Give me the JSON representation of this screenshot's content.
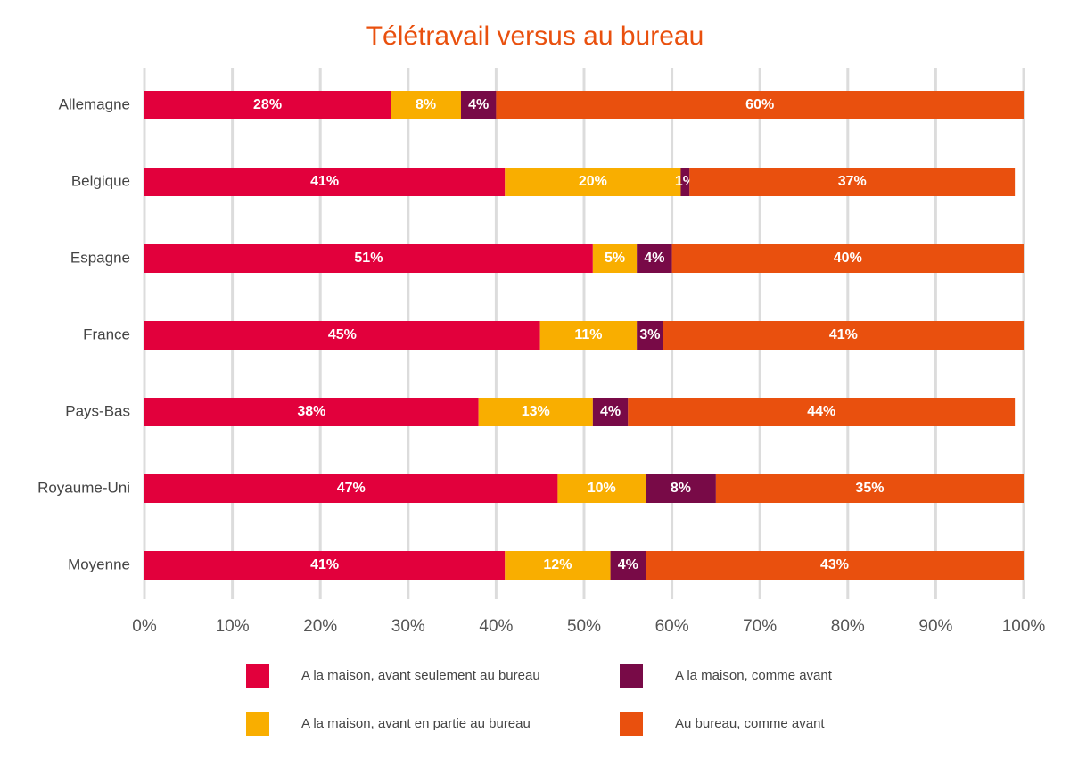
{
  "chart_data": {
    "type": "stacked-bar-horizontal",
    "title": "Télétravail versus au bureau",
    "categories": [
      "Allemagne",
      "Belgique",
      "Espagne",
      "France",
      "Pays-Bas",
      "Royaume-Uni",
      "Moyenne"
    ],
    "series": [
      {
        "name": "A la maison, avant seulement au bureau",
        "color": "#e2003c",
        "values": [
          28,
          41,
          51,
          45,
          38,
          47,
          41
        ],
        "value_labels": [
          "28%",
          "41%",
          "51%",
          "45%",
          "38%",
          "47%",
          "41%"
        ]
      },
      {
        "name": "A la maison, avant en partie au bureau",
        "color": "#f9ae00",
        "values": [
          8,
          20,
          5,
          11,
          13,
          10,
          12
        ],
        "value_labels": [
          "8%",
          "20%",
          "5%",
          "11%",
          "13%",
          "10%",
          "12%"
        ]
      },
      {
        "name": "A la maison, comme avant",
        "color": "#780a47",
        "values": [
          4,
          1,
          4,
          3,
          4,
          8,
          4
        ],
        "value_labels": [
          "4%",
          "1%",
          "4%",
          "3%",
          "4%",
          "8%",
          "4%"
        ]
      },
      {
        "name": "Au bureau, comme avant",
        "color": "#e9500e",
        "values": [
          60,
          37,
          40,
          41,
          44,
          35,
          43
        ],
        "value_labels": [
          "60%",
          "37%",
          "40%",
          "41%",
          "44%",
          "35%",
          "43%"
        ]
      }
    ],
    "xlim": [
      0,
      100
    ],
    "xticks": [
      {
        "value": 0,
        "label": "0%"
      },
      {
        "value": 10,
        "label": "10%"
      },
      {
        "value": 20,
        "label": "20%"
      },
      {
        "value": 30,
        "label": "30%"
      },
      {
        "value": 40,
        "label": "40%"
      },
      {
        "value": 50,
        "label": "50%"
      },
      {
        "value": 60,
        "label": "60%"
      },
      {
        "value": 70,
        "label": "70%"
      },
      {
        "value": 80,
        "label": "80%"
      },
      {
        "value": 90,
        "label": "90%"
      },
      {
        "value": 100,
        "label": "100%"
      }
    ],
    "grid": true
  }
}
